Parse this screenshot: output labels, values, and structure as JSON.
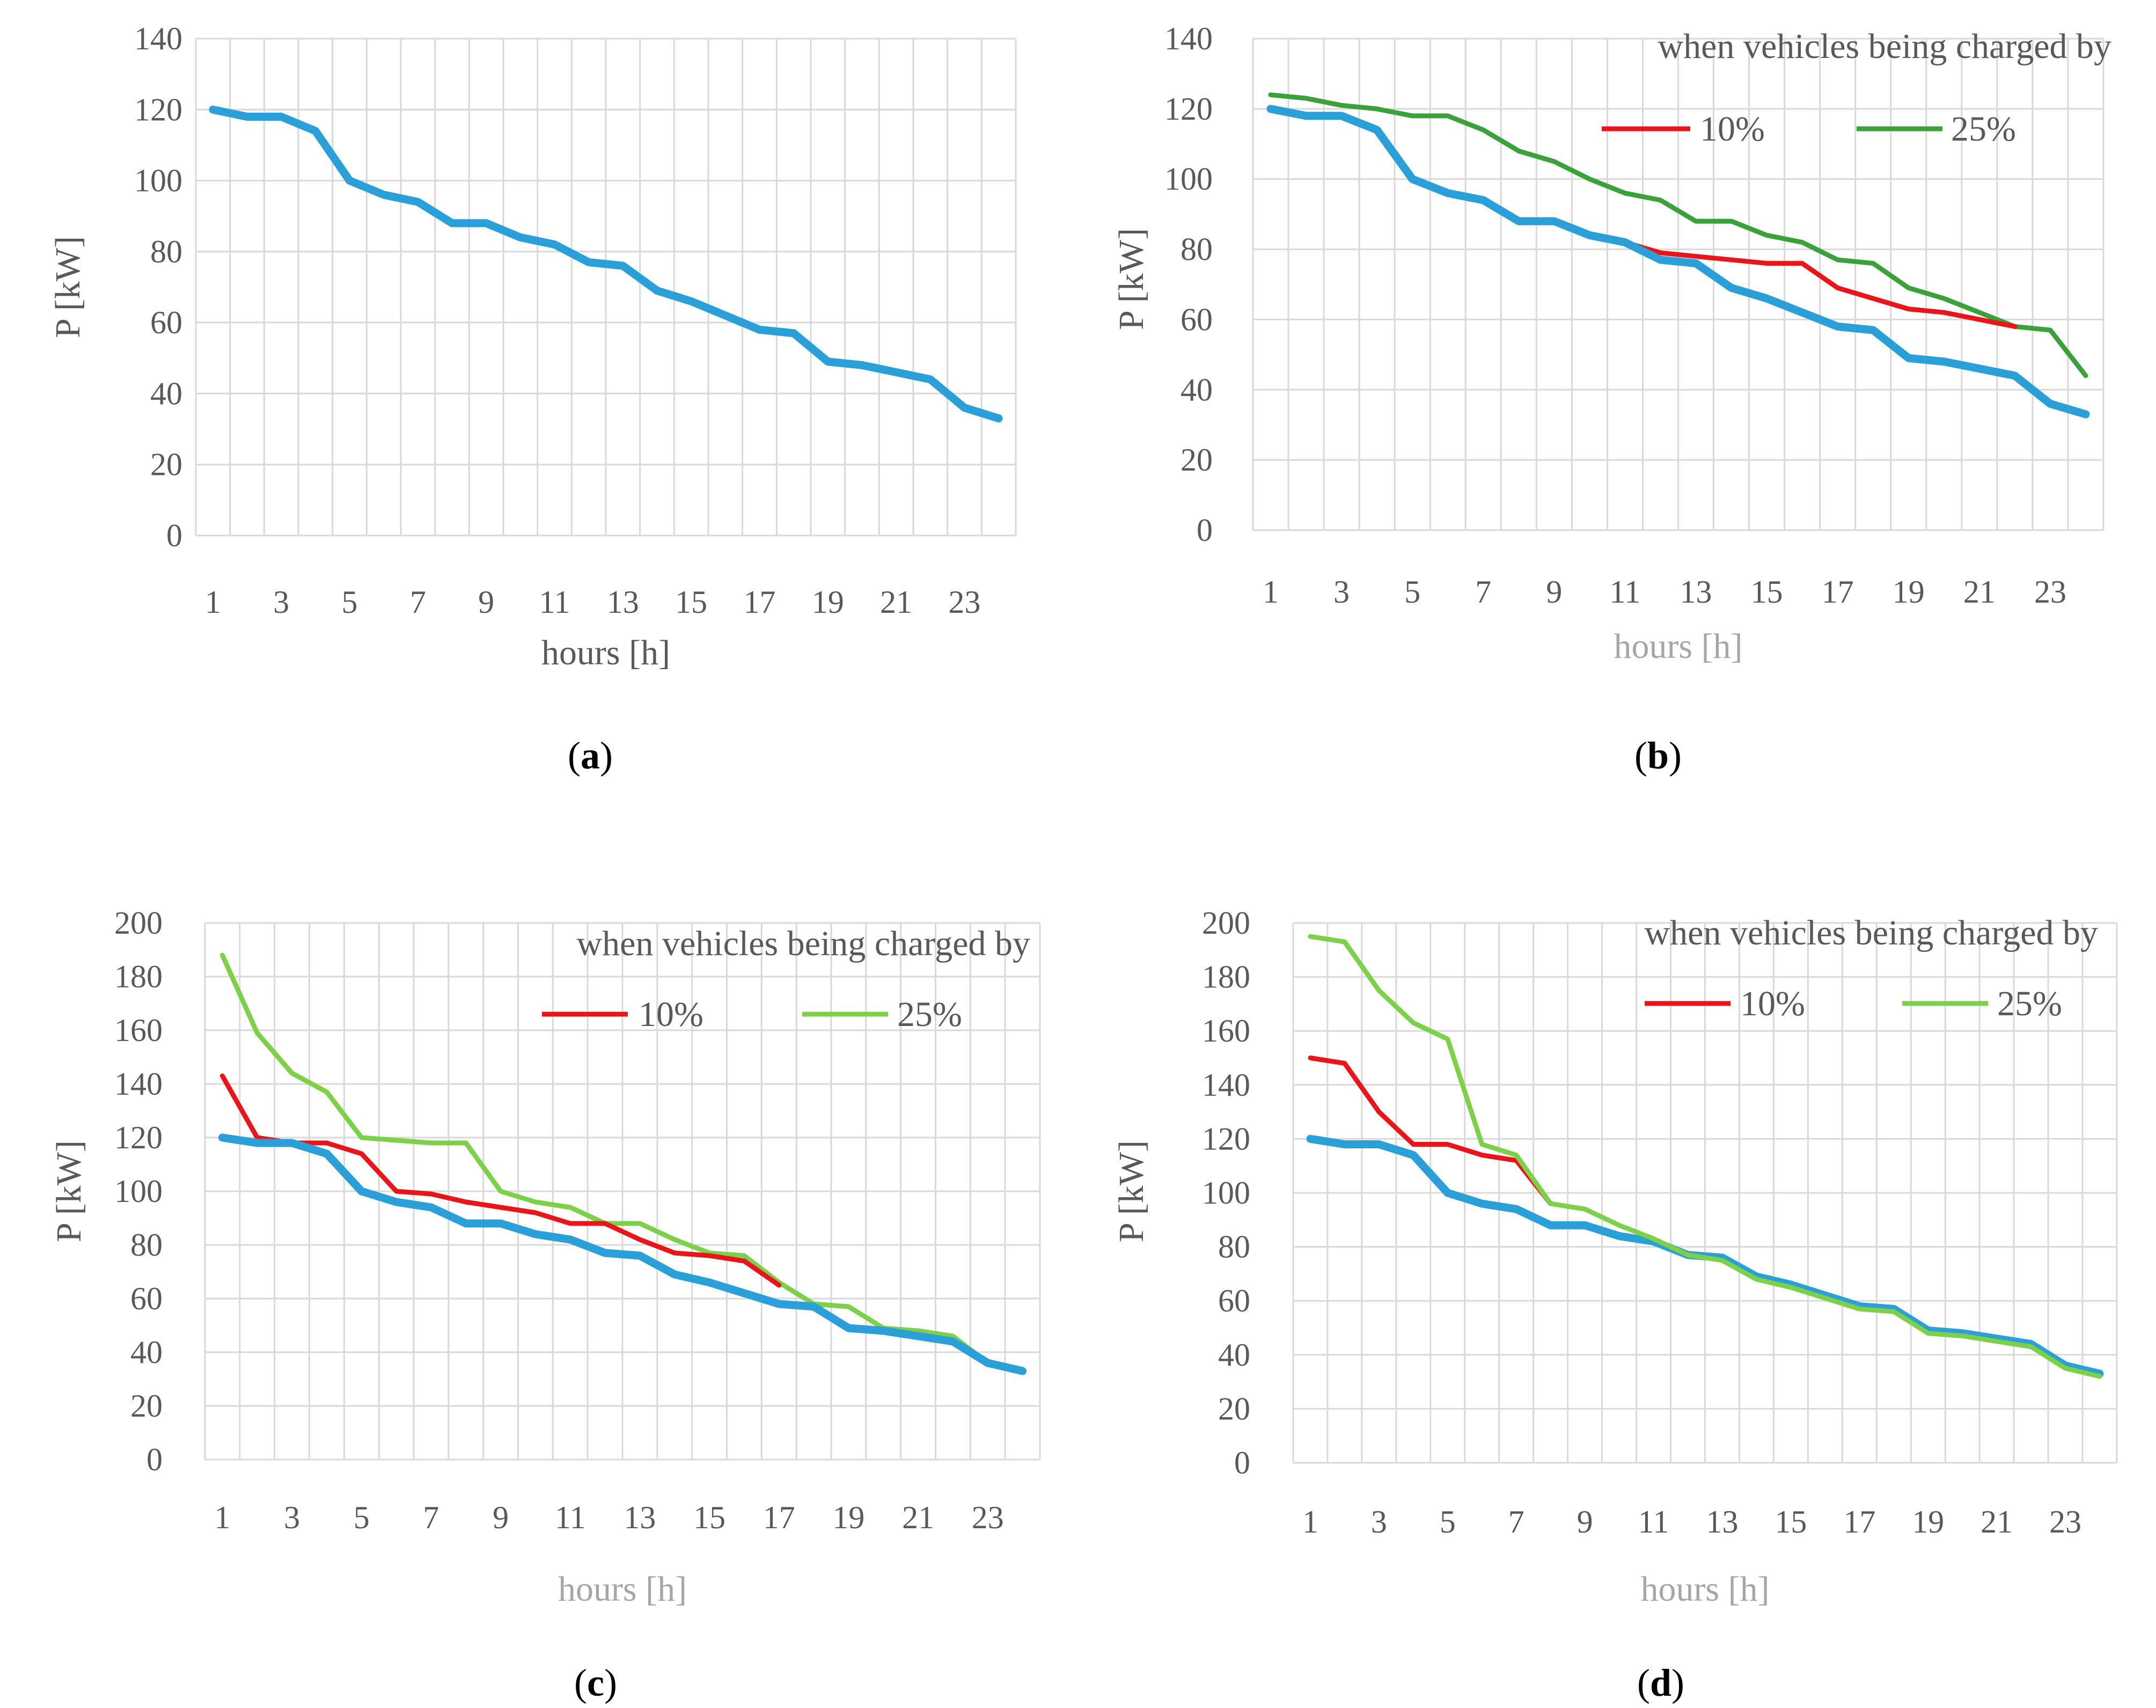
{
  "colors": {
    "base": "#2a9fd8",
    "red": "#e8161b",
    "green_dark": "#3ba23b",
    "green_light": "#7cd04a",
    "grid": "#d9d9d9",
    "text": "#595959",
    "text_light": "#a6a6a6"
  },
  "chart_data": [
    {
      "id": "a",
      "type": "line",
      "panel_label": "a",
      "xlabel": "hours [h]",
      "ylabel": "P [kW]",
      "ylim": [
        0,
        140
      ],
      "ystep": 20,
      "x": [
        1,
        2,
        3,
        4,
        5,
        6,
        7,
        8,
        9,
        10,
        11,
        12,
        13,
        14,
        15,
        16,
        17,
        18,
        19,
        20,
        21,
        22,
        23,
        24
      ],
      "x_tick_labels": [
        "1",
        "3",
        "5",
        "7",
        "9",
        "11",
        "13",
        "15",
        "17",
        "19",
        "21",
        "23"
      ],
      "legend_title": "",
      "series": [
        {
          "name": "base",
          "color_key": "base",
          "values": [
            120,
            118,
            118,
            114,
            100,
            96,
            94,
            88,
            88,
            84,
            82,
            77,
            76,
            69,
            66,
            62,
            58,
            57,
            49,
            48,
            46,
            44,
            36,
            33
          ]
        }
      ]
    },
    {
      "id": "b",
      "type": "line",
      "panel_label": "b",
      "xlabel": "hours [h]",
      "ylabel": "P [kW]",
      "ylim": [
        0,
        140
      ],
      "ystep": 20,
      "x": [
        1,
        2,
        3,
        4,
        5,
        6,
        7,
        8,
        9,
        10,
        11,
        12,
        13,
        14,
        15,
        16,
        17,
        18,
        19,
        20,
        21,
        22,
        23,
        24
      ],
      "x_tick_labels": [
        "1",
        "3",
        "5",
        "7",
        "9",
        "11",
        "13",
        "15",
        "17",
        "19",
        "21",
        "23"
      ],
      "legend_title": "when vehicles being charged by",
      "series": [
        {
          "name": "25%",
          "color_key": "green_dark",
          "legend": true,
          "values": [
            124,
            123,
            121,
            120,
            118,
            118,
            114,
            108,
            105,
            100,
            96,
            94,
            88,
            88,
            84,
            82,
            77,
            76,
            69,
            66,
            62,
            58,
            57,
            44
          ]
        },
        {
          "name": "10%",
          "color_key": "red",
          "legend": true,
          "values": [
            120,
            118,
            118,
            114,
            100,
            96,
            94,
            88,
            88,
            84,
            82,
            79,
            78,
            77,
            76,
            76,
            69,
            66,
            63,
            62,
            60,
            58,
            null,
            null
          ]
        },
        {
          "name": "base",
          "color_key": "base",
          "legend": false,
          "values": [
            120,
            118,
            118,
            114,
            100,
            96,
            94,
            88,
            88,
            84,
            82,
            77,
            76,
            69,
            66,
            62,
            58,
            57,
            49,
            48,
            46,
            44,
            36,
            33
          ]
        }
      ]
    },
    {
      "id": "c",
      "type": "line",
      "panel_label": "c",
      "xlabel": "hours [h]",
      "ylabel": "P [kW]",
      "ylim": [
        0,
        200
      ],
      "ystep": 20,
      "x": [
        1,
        2,
        3,
        4,
        5,
        6,
        7,
        8,
        9,
        10,
        11,
        12,
        13,
        14,
        15,
        16,
        17,
        18,
        19,
        20,
        21,
        22,
        23,
        24
      ],
      "x_tick_labels": [
        "1",
        "3",
        "5",
        "7",
        "9",
        "11",
        "13",
        "15",
        "17",
        "19",
        "21",
        "23"
      ],
      "legend_title": "when vehicles being charged by",
      "series": [
        {
          "name": "25%",
          "color_key": "green_light",
          "legend": true,
          "values": [
            188,
            159,
            144,
            137,
            120,
            119,
            118,
            118,
            100,
            96,
            94,
            88,
            88,
            82,
            77,
            76,
            66,
            58,
            57,
            49,
            48,
            46,
            36,
            33
          ]
        },
        {
          "name": "10%",
          "color_key": "red",
          "legend": true,
          "values": [
            143,
            120,
            118,
            118,
            114,
            100,
            99,
            96,
            94,
            92,
            88,
            88,
            82,
            77,
            76,
            74,
            65,
            null,
            null,
            null,
            null,
            null,
            null,
            null
          ]
        },
        {
          "name": "base",
          "color_key": "base",
          "legend": false,
          "values": [
            120,
            118,
            118,
            114,
            100,
            96,
            94,
            88,
            88,
            84,
            82,
            77,
            76,
            69,
            66,
            62,
            58,
            57,
            49,
            48,
            46,
            44,
            36,
            33
          ]
        }
      ]
    },
    {
      "id": "d",
      "type": "line",
      "panel_label": "d",
      "xlabel": "hours [h]",
      "ylabel": "P [kW]",
      "ylim": [
        0,
        200
      ],
      "ystep": 20,
      "x": [
        1,
        2,
        3,
        4,
        5,
        6,
        7,
        8,
        9,
        10,
        11,
        12,
        13,
        14,
        15,
        16,
        17,
        18,
        19,
        20,
        21,
        22,
        23,
        24
      ],
      "x_tick_labels": [
        "1",
        "3",
        "5",
        "7",
        "9",
        "11",
        "13",
        "15",
        "17",
        "19",
        "21",
        "23"
      ],
      "legend_title": "when vehicles being charged by",
      "series": [
        {
          "name": "base",
          "color_key": "base",
          "legend": false,
          "values": [
            120,
            118,
            118,
            114,
            100,
            96,
            94,
            88,
            88,
            84,
            82,
            77,
            76,
            69,
            66,
            62,
            58,
            57,
            49,
            48,
            46,
            44,
            36,
            33
          ]
        },
        {
          "name": "10%",
          "color_key": "red",
          "legend": true,
          "values": [
            150,
            148,
            130,
            118,
            118,
            114,
            112,
            96,
            null,
            null,
            null,
            null,
            null,
            null,
            null,
            null,
            null,
            null,
            null,
            null,
            null,
            null,
            null,
            null
          ]
        },
        {
          "name": "25%",
          "color_key": "green_light",
          "legend": true,
          "values": [
            195,
            193,
            175,
            163,
            157,
            118,
            114,
            96,
            94,
            88,
            83,
            77,
            75,
            68,
            65,
            61,
            57,
            56,
            48,
            47,
            45,
            43,
            35,
            32
          ]
        }
      ]
    }
  ]
}
